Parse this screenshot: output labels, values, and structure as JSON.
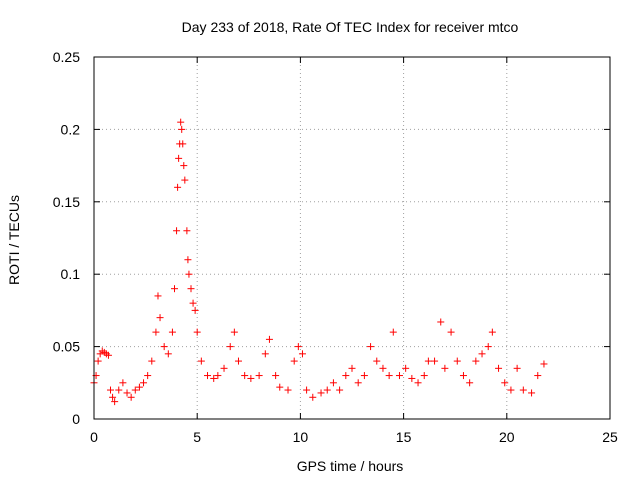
{
  "chart_data": {
    "type": "scatter",
    "title": "Day 233 of 2018, Rate Of TEC Index for receiver mtco",
    "xlabel": "GPS time / hours",
    "ylabel": "ROTI / TECUs",
    "xlim": [
      0,
      25
    ],
    "ylim": [
      0,
      0.25
    ],
    "xticks": [
      0,
      5,
      10,
      15,
      20,
      25
    ],
    "xtick_labels": [
      "0",
      "5",
      "10",
      "15",
      "20",
      "25"
    ],
    "yticks": [
      0,
      0.05,
      0.1,
      0.15,
      0.2,
      0.25
    ],
    "ytick_labels": [
      "0",
      "0.05",
      "0.1",
      "0.15",
      "0.2",
      "0.25"
    ],
    "grid": true,
    "marker": "plus",
    "color": "#ff0000",
    "series": [
      {
        "name": "ROTI",
        "points": [
          [
            0.0,
            0.025
          ],
          [
            0.1,
            0.03
          ],
          [
            0.2,
            0.04
          ],
          [
            0.3,
            0.045
          ],
          [
            0.4,
            0.047
          ],
          [
            0.5,
            0.046
          ],
          [
            0.6,
            0.045
          ],
          [
            0.7,
            0.044
          ],
          [
            0.8,
            0.02
          ],
          [
            0.9,
            0.015
          ],
          [
            1.0,
            0.012
          ],
          [
            1.2,
            0.02
          ],
          [
            1.4,
            0.025
          ],
          [
            1.6,
            0.018
          ],
          [
            1.8,
            0.015
          ],
          [
            2.0,
            0.02
          ],
          [
            2.2,
            0.022
          ],
          [
            2.4,
            0.025
          ],
          [
            2.6,
            0.03
          ],
          [
            2.8,
            0.04
          ],
          [
            3.0,
            0.06
          ],
          [
            3.1,
            0.085
          ],
          [
            3.2,
            0.07
          ],
          [
            3.4,
            0.05
          ],
          [
            3.6,
            0.045
          ],
          [
            3.8,
            0.06
          ],
          [
            3.9,
            0.09
          ],
          [
            4.0,
            0.13
          ],
          [
            4.05,
            0.16
          ],
          [
            4.1,
            0.18
          ],
          [
            4.15,
            0.19
          ],
          [
            4.2,
            0.205
          ],
          [
            4.25,
            0.2
          ],
          [
            4.3,
            0.19
          ],
          [
            4.35,
            0.175
          ],
          [
            4.4,
            0.165
          ],
          [
            4.5,
            0.13
          ],
          [
            4.55,
            0.11
          ],
          [
            4.6,
            0.1
          ],
          [
            4.7,
            0.09
          ],
          [
            4.8,
            0.08
          ],
          [
            4.9,
            0.075
          ],
          [
            5.0,
            0.06
          ],
          [
            5.2,
            0.04
          ],
          [
            5.5,
            0.03
          ],
          [
            5.8,
            0.028
          ],
          [
            6.0,
            0.03
          ],
          [
            6.3,
            0.035
          ],
          [
            6.6,
            0.05
          ],
          [
            6.8,
            0.06
          ],
          [
            7.0,
            0.04
          ],
          [
            7.3,
            0.03
          ],
          [
            7.6,
            0.028
          ],
          [
            8.0,
            0.03
          ],
          [
            8.3,
            0.045
          ],
          [
            8.5,
            0.055
          ],
          [
            8.8,
            0.03
          ],
          [
            9.0,
            0.022
          ],
          [
            9.4,
            0.02
          ],
          [
            9.7,
            0.04
          ],
          [
            9.9,
            0.05
          ],
          [
            10.1,
            0.045
          ],
          [
            10.3,
            0.02
          ],
          [
            10.6,
            0.015
          ],
          [
            11.0,
            0.018
          ],
          [
            11.3,
            0.02
          ],
          [
            11.6,
            0.025
          ],
          [
            11.9,
            0.02
          ],
          [
            12.2,
            0.03
          ],
          [
            12.5,
            0.035
          ],
          [
            12.8,
            0.025
          ],
          [
            13.1,
            0.03
          ],
          [
            13.4,
            0.05
          ],
          [
            13.7,
            0.04
          ],
          [
            14.0,
            0.035
          ],
          [
            14.3,
            0.03
          ],
          [
            14.5,
            0.06
          ],
          [
            14.8,
            0.03
          ],
          [
            15.1,
            0.035
          ],
          [
            15.4,
            0.028
          ],
          [
            15.7,
            0.025
          ],
          [
            16.0,
            0.03
          ],
          [
            16.2,
            0.04
          ],
          [
            16.5,
            0.04
          ],
          [
            16.8,
            0.067
          ],
          [
            17.0,
            0.035
          ],
          [
            17.3,
            0.06
          ],
          [
            17.6,
            0.04
          ],
          [
            17.9,
            0.03
          ],
          [
            18.2,
            0.025
          ],
          [
            18.5,
            0.04
          ],
          [
            18.8,
            0.045
          ],
          [
            19.1,
            0.05
          ],
          [
            19.3,
            0.06
          ],
          [
            19.6,
            0.035
          ],
          [
            19.9,
            0.025
          ],
          [
            20.2,
            0.02
          ],
          [
            20.5,
            0.035
          ],
          [
            20.8,
            0.02
          ],
          [
            21.2,
            0.018
          ],
          [
            21.5,
            0.03
          ],
          [
            21.8,
            0.038
          ]
        ]
      }
    ]
  }
}
